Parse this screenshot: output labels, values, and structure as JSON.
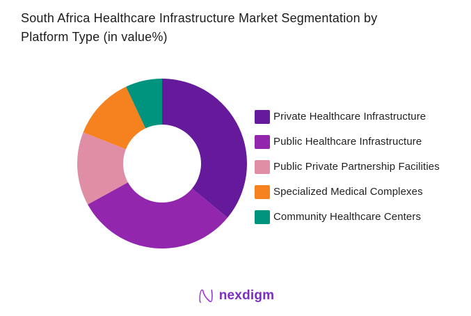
{
  "title": "South Africa Healthcare Infrastructure Market Segmentation by\nPlatform Type (in value%)",
  "chart_data": {
    "type": "pie",
    "subtype": "donut",
    "title": "South Africa Healthcare Infrastructure Market Segmentation by Platform Type (in value%)",
    "unit": "value %",
    "legend_position": "right",
    "start_angle_deg": 0,
    "donut_hole_ratio": 0.46,
    "segments": [
      {
        "label": "Private Healthcare Infrastructure",
        "value": 36,
        "color": "#641A9A"
      },
      {
        "label": "Public Healthcare Infrastructure",
        "value": 31,
        "color": "#9227AE"
      },
      {
        "label": "Public Private Partnership Facilities",
        "value": 14,
        "color": "#E08DA6"
      },
      {
        "label": "Specialized Medical Complexes",
        "value": 12,
        "color": "#F5821F"
      },
      {
        "label": "Community Healthcare Centers",
        "value": 7,
        "color": "#00947E"
      }
    ]
  },
  "logo": {
    "text": "nexdigm",
    "color": "#7C2EC4"
  }
}
